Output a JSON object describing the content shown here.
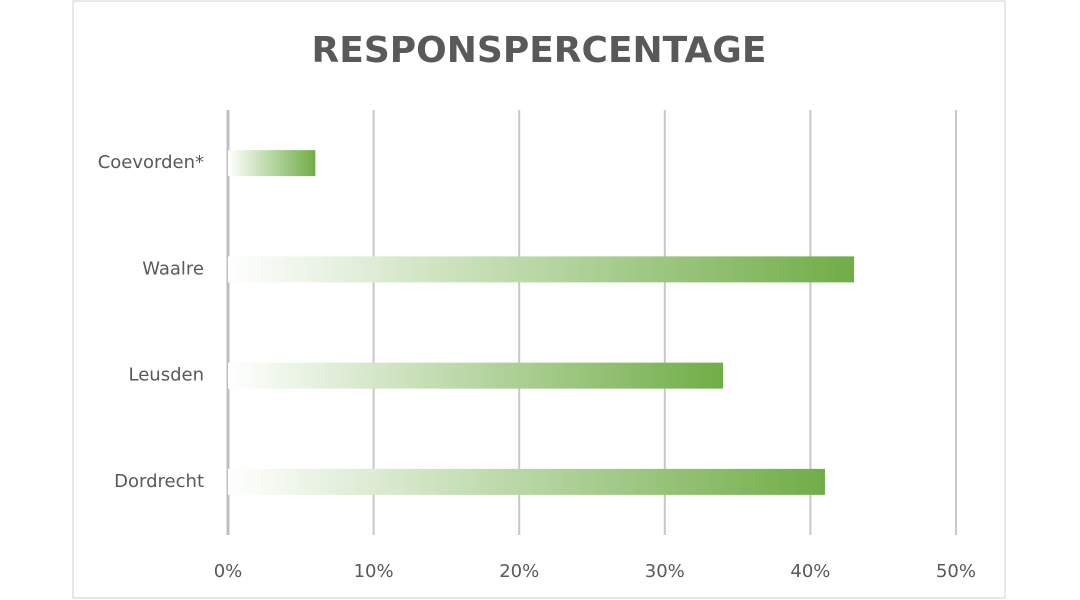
{
  "chart_data": {
    "type": "bar",
    "orientation": "horizontal",
    "title": "RESPONSPERCENTAGE",
    "categories": [
      "Coevorden*",
      "Waalre",
      "Leusden",
      "Dordrecht"
    ],
    "values": [
      6,
      43,
      34,
      41
    ],
    "color": "#70ad47",
    "xlim": [
      0,
      50
    ],
    "xticks": [
      {
        "value": 0,
        "label": "0%"
      },
      {
        "value": 10,
        "label": "10%"
      },
      {
        "value": 20,
        "label": "20%"
      },
      {
        "value": 30,
        "label": "30%"
      },
      {
        "value": 40,
        "label": "40%"
      },
      {
        "value": 50,
        "label": "50%"
      }
    ],
    "grid": true
  }
}
